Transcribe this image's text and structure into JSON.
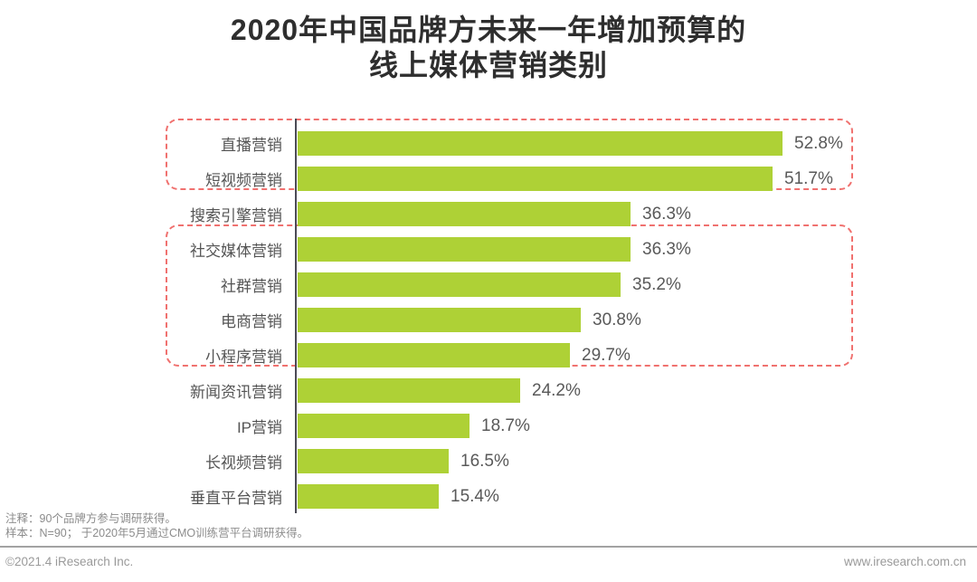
{
  "title": {
    "line1": "2020年中国品牌方未来一年增加预算的",
    "line2": "线上媒体营销类别"
  },
  "chart_data": {
    "type": "bar",
    "orientation": "horizontal",
    "title": "2020年中国品牌方未来一年增加预算的线上媒体营销类别",
    "categories": [
      "直播营销",
      "短视频营销",
      "搜索引擎营销",
      "社交媒体营销",
      "社群营销",
      "电商营销",
      "小程序营销",
      "新闻资讯营销",
      "IP营销",
      "长视频营销",
      "垂直平台营销"
    ],
    "values": [
      52.8,
      51.7,
      36.3,
      36.3,
      35.2,
      30.8,
      29.7,
      24.2,
      18.7,
      16.5,
      15.4
    ],
    "value_labels": [
      "52.8%",
      "51.7%",
      "36.3%",
      "36.3%",
      "35.2%",
      "30.8%",
      "29.7%",
      "24.2%",
      "18.7%",
      "16.5%",
      "15.4%"
    ],
    "unit": "%",
    "xlim": [
      0,
      60
    ],
    "grid": false,
    "legend": false,
    "bar_color": "#aed136",
    "highlight_box_color": "#f0716f",
    "highlight_groups": [
      {
        "from": 0,
        "to": 1
      },
      {
        "from": 3,
        "to": 6
      }
    ]
  },
  "footer": {
    "note1": "注释：90个品牌方参与调研获得。",
    "note2": "样本：N=90； 于2020年5月通过CMO训练营平台调研获得。",
    "copyright": "©2021.4 iResearch Inc.",
    "website": "www.iresearch.com.cn"
  }
}
